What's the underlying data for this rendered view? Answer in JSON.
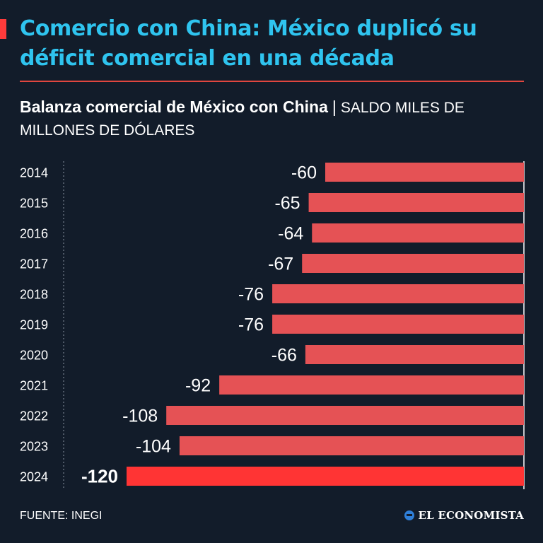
{
  "header": {
    "title": "Comercio con China: México duplicó su déficit comercial en una década",
    "subtitle_bold": "Balanza comercial de México con China",
    "subtitle_sep": "|",
    "subtitle_unit": "SALDO MILES DE MILLONES DE DÓLARES"
  },
  "footer": {
    "source": "FUENTE: INEGI",
    "brand": "EL ECONOMISTA"
  },
  "colors": {
    "background": "#121c2a",
    "title": "#2fc4ef",
    "bar": "#e55255",
    "bar_highlight": "#ff3434",
    "accent": "#ff3b3b"
  },
  "chart_data": {
    "type": "bar",
    "orientation": "horizontal",
    "categories": [
      "2014",
      "2015",
      "2016",
      "2017",
      "2018",
      "2019",
      "2020",
      "2021",
      "2022",
      "2023",
      "2024"
    ],
    "values": [
      -60,
      -65,
      -64,
      -67,
      -76,
      -76,
      -66,
      -92,
      -108,
      -104,
      -120
    ],
    "labels": [
      "-60",
      "-65",
      "-64",
      "-67",
      "-76",
      "-76",
      "-66",
      "-92",
      "-108",
      "-104",
      "-120"
    ],
    "highlight": "2024",
    "xlim": [
      -120,
      0
    ],
    "grid": false
  }
}
